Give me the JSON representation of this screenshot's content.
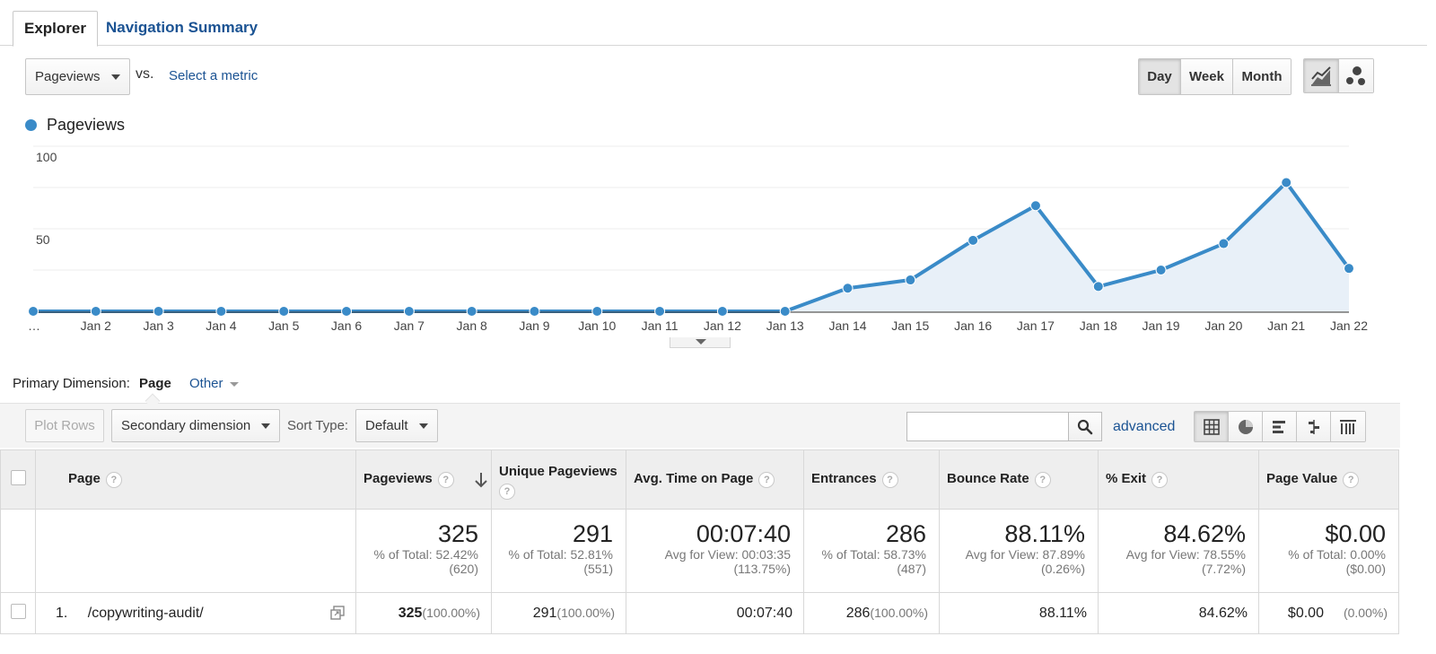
{
  "tabs": [
    {
      "label": "Explorer",
      "active": true
    },
    {
      "label": "Navigation Summary",
      "active": false
    }
  ],
  "metric": {
    "selected": "Pageviews",
    "vs_label": "vs.",
    "select_link": "Select a metric"
  },
  "granularity": {
    "options": [
      "Day",
      "Week",
      "Month"
    ],
    "selected": "Day"
  },
  "chart_view_icons": [
    "line-chart-icon",
    "motion-chart-icon"
  ],
  "legend": {
    "label": "Pageviews",
    "color": "#3a8bc8"
  },
  "chart_data": {
    "type": "area",
    "x": [
      "…",
      "Jan 2",
      "Jan 3",
      "Jan 4",
      "Jan 5",
      "Jan 6",
      "Jan 7",
      "Jan 8",
      "Jan 9",
      "Jan 10",
      "Jan 11",
      "Jan 12",
      "Jan 13",
      "Jan 14",
      "Jan 15",
      "Jan 16",
      "Jan 17",
      "Jan 18",
      "Jan 19",
      "Jan 20",
      "Jan 21",
      "Jan 22"
    ],
    "series": [
      {
        "name": "Pageviews",
        "values": [
          0,
          0,
          0,
          0,
          0,
          0,
          0,
          0,
          0,
          0,
          0,
          0,
          0,
          14,
          19,
          43,
          64,
          15,
          25,
          41,
          78,
          26
        ]
      }
    ],
    "yticks": [
      50,
      100
    ],
    "ylim": [
      0,
      100
    ],
    "grid": true,
    "color": "#3a8bc8",
    "fill": "#e8f0f8"
  },
  "dimension": {
    "label": "Primary Dimension:",
    "selected": "Page",
    "other": "Other"
  },
  "toolbar": {
    "plot_rows": "Plot Rows",
    "secondary_dimension": "Secondary dimension",
    "sort_type_label": "Sort Type:",
    "sort_type_value": "Default",
    "search_placeholder": "",
    "advanced": "advanced",
    "view_icons": [
      "table-view-icon",
      "pie-view-icon",
      "bar-view-icon",
      "comparison-view-icon",
      "pivot-view-icon"
    ]
  },
  "table": {
    "headers": {
      "page": "Page",
      "pageviews": "Pageviews",
      "unique": "Unique Pageviews",
      "avg_time": "Avg. Time on Page",
      "entrances": "Entrances",
      "bounce": "Bounce Rate",
      "exit": "% Exit",
      "value": "Page Value"
    },
    "help_glyph": "?",
    "totals": {
      "pageviews": {
        "value": "325",
        "l1": "% of Total: 52.42%",
        "l2": "(620)"
      },
      "unique": {
        "value": "291",
        "l1": "% of Total: 52.81%",
        "l2": "(551)"
      },
      "avg_time": {
        "value": "00:07:40",
        "l1": "Avg for View: 00:03:35",
        "l2": "(113.75%)"
      },
      "entrances": {
        "value": "286",
        "l1": "% of Total: 58.73%",
        "l2": "(487)"
      },
      "bounce": {
        "value": "88.11%",
        "l1": "Avg for View: 87.89%",
        "l2": "(0.26%)"
      },
      "exit": {
        "value": "84.62%",
        "l1": "Avg for View: 78.55%",
        "l2": "(7.72%)"
      },
      "value": {
        "value": "$0.00",
        "l1": "% of Total: 0.00%",
        "l2": "($0.00)"
      }
    },
    "rows": [
      {
        "index": "1.",
        "page": "/copywriting-audit/",
        "pageviews": "325",
        "pageviews_pct": "(100.00%)",
        "unique": "291",
        "unique_pct": "(100.00%)",
        "avg_time": "00:07:40",
        "entrances": "286",
        "entrances_pct": "(100.00%)",
        "bounce": "88.11%",
        "exit": "84.62%",
        "value": "$0.00",
        "value_pct": "(0.00%)"
      }
    ]
  }
}
